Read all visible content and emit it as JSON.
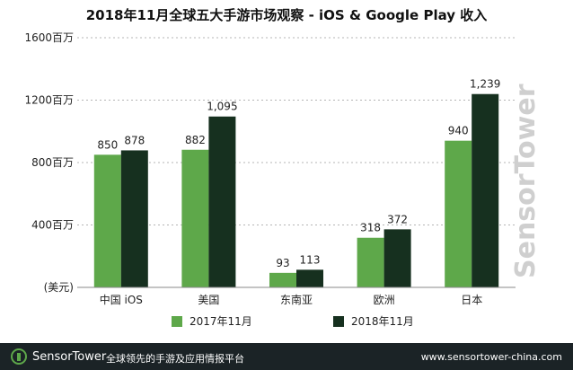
{
  "colors": {
    "series_2017": "#5ea84a",
    "series_2018": "#16301f",
    "footer_bg": "#1b2326",
    "watermark": "#c8c8c8"
  },
  "chart_data": {
    "type": "bar",
    "title": "2018年11月全球五大手游市场观察 - iOS & Google Play 收入",
    "categories": [
      "中国 iOS",
      "美国",
      "东南亚",
      "欧洲",
      "日本"
    ],
    "series": [
      {
        "name": "2017年11月",
        "values": [
          850,
          882,
          93,
          318,
          940
        ]
      },
      {
        "name": "2018年11月",
        "values": [
          878,
          1095,
          113,
          372,
          1239
        ]
      }
    ],
    "value_labels": [
      [
        "850",
        "882",
        "93",
        "318",
        "940"
      ],
      [
        "878",
        "1,095",
        "113",
        "372",
        "1,239"
      ]
    ],
    "ylabel": "(美元)",
    "yticks": [
      0,
      400,
      800,
      1200,
      1600
    ],
    "ytick_labels": [
      "(美元)",
      "400百万",
      "800百万",
      "1200百万",
      "1600百万"
    ],
    "ylim": [
      0,
      1600
    ],
    "grid": true,
    "legend_position": "bottom"
  },
  "watermark": {
    "text": "SensorTower"
  },
  "footer": {
    "brand": "SensorTower",
    "slogan": "全球领先的手游及应用情报平台",
    "url": "www.sensortower-china.com"
  }
}
